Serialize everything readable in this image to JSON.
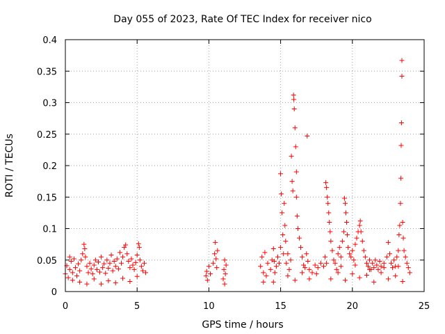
{
  "chart_data": {
    "type": "scatter",
    "title": "Day 055 of 2023, Rate Of TEC Index for receiver nico",
    "xlabel": "GPS time / hours",
    "ylabel": "ROTI / TECUs",
    "xlim": [
      0,
      25
    ],
    "ylim": [
      0,
      0.4
    ],
    "xticks": [
      0,
      5,
      10,
      15,
      20,
      25
    ],
    "yticks": [
      0,
      0.05,
      0.1,
      0.15,
      0.2,
      0.25,
      0.3,
      0.35,
      0.4
    ],
    "xtick_labels": [
      "0",
      "5",
      "10",
      "15",
      "20",
      "25"
    ],
    "ytick_labels": [
      "0",
      "0.05",
      "0.1",
      "0.15",
      "0.2",
      "0.25",
      "0.3",
      "0.35",
      "0.4"
    ],
    "grid": true,
    "marker": "+",
    "color": "#ff0000",
    "series": [
      {
        "name": "ROTI",
        "points": [
          [
            0.0,
            0.028
          ],
          [
            0.1,
            0.041
          ],
          [
            0.2,
            0.022
          ],
          [
            0.3,
            0.035
          ],
          [
            0.4,
            0.048
          ],
          [
            0.5,
            0.03
          ],
          [
            0.6,
            0.052
          ],
          [
            0.7,
            0.038
          ],
          [
            0.8,
            0.025
          ],
          [
            0.9,
            0.044
          ],
          [
            1.0,
            0.033
          ],
          [
            1.1,
            0.05
          ],
          [
            1.2,
            0.06
          ],
          [
            1.3,
            0.075
          ],
          [
            1.35,
            0.068
          ],
          [
            1.4,
            0.055
          ],
          [
            1.5,
            0.04
          ],
          [
            1.6,
            0.03
          ],
          [
            1.7,
            0.045
          ],
          [
            1.8,
            0.036
          ],
          [
            1.9,
            0.028
          ],
          [
            2.0,
            0.042
          ],
          [
            2.1,
            0.05
          ],
          [
            2.2,
            0.035
          ],
          [
            2.3,
            0.047
          ],
          [
            2.4,
            0.031
          ],
          [
            2.5,
            0.055
          ],
          [
            2.6,
            0.038
          ],
          [
            2.7,
            0.044
          ],
          [
            2.8,
            0.029
          ],
          [
            2.9,
            0.05
          ],
          [
            3.0,
            0.037
          ],
          [
            3.1,
            0.045
          ],
          [
            3.2,
            0.058
          ],
          [
            3.3,
            0.033
          ],
          [
            3.4,
            0.048
          ],
          [
            3.5,
            0.04
          ],
          [
            3.6,
            0.052
          ],
          [
            3.7,
            0.036
          ],
          [
            3.8,
            0.062
          ],
          [
            3.9,
            0.045
          ],
          [
            4.0,
            0.055
          ],
          [
            4.1,
            0.07
          ],
          [
            4.2,
            0.074
          ],
          [
            4.3,
            0.06
          ],
          [
            4.4,
            0.048
          ],
          [
            4.5,
            0.038
          ],
          [
            4.6,
            0.052
          ],
          [
            4.7,
            0.042
          ],
          [
            4.8,
            0.035
          ],
          [
            4.9,
            0.046
          ],
          [
            5.0,
            0.058
          ],
          [
            5.1,
            0.076
          ],
          [
            5.15,
            0.07
          ],
          [
            5.2,
            0.05
          ],
          [
            5.3,
            0.04
          ],
          [
            5.4,
            0.033
          ],
          [
            5.5,
            0.045
          ],
          [
            5.6,
            0.03
          ],
          [
            0.5,
            0.018
          ],
          [
            1.0,
            0.015
          ],
          [
            2.0,
            0.02
          ],
          [
            3.0,
            0.017
          ],
          [
            4.0,
            0.021
          ],
          [
            5.0,
            0.024
          ],
          [
            0.3,
            0.055
          ],
          [
            2.5,
            0.012
          ],
          [
            3.5,
            0.014
          ],
          [
            1.5,
            0.012
          ],
          [
            4.5,
            0.016
          ],
          [
            9.8,
            0.025
          ],
          [
            9.85,
            0.032
          ],
          [
            9.9,
            0.018
          ],
          [
            10.0,
            0.04
          ],
          [
            10.1,
            0.028
          ],
          [
            10.3,
            0.045
          ],
          [
            10.4,
            0.06
          ],
          [
            10.45,
            0.078
          ],
          [
            10.5,
            0.052
          ],
          [
            10.55,
            0.038
          ],
          [
            10.6,
            0.065
          ],
          [
            11.0,
            0.02
          ],
          [
            11.05,
            0.035
          ],
          [
            11.1,
            0.05
          ],
          [
            11.15,
            0.028
          ],
          [
            11.2,
            0.042
          ],
          [
            11.1,
            0.012
          ],
          [
            13.6,
            0.04
          ],
          [
            13.7,
            0.055
          ],
          [
            13.8,
            0.03
          ],
          [
            13.9,
            0.062
          ],
          [
            14.0,
            0.025
          ],
          [
            14.1,
            0.045
          ],
          [
            14.3,
            0.035
          ],
          [
            14.4,
            0.05
          ],
          [
            14.5,
            0.068
          ],
          [
            14.55,
            0.048
          ],
          [
            14.6,
            0.03
          ],
          [
            14.7,
            0.04
          ],
          [
            14.8,
            0.055
          ],
          [
            14.9,
            0.045
          ],
          [
            15.0,
            0.07
          ],
          [
            15.0,
            0.187
          ],
          [
            15.05,
            0.155
          ],
          [
            15.1,
            0.125
          ],
          [
            15.15,
            0.09
          ],
          [
            15.2,
            0.06
          ],
          [
            15.25,
            0.14
          ],
          [
            15.3,
            0.105
          ],
          [
            15.35,
            0.08
          ],
          [
            15.4,
            0.045
          ],
          [
            15.5,
            0.06
          ],
          [
            15.6,
            0.035
          ],
          [
            15.7,
            0.05
          ],
          [
            15.75,
            0.215
          ],
          [
            15.8,
            0.175
          ],
          [
            15.85,
            0.16
          ],
          [
            15.9,
            0.312
          ],
          [
            15.92,
            0.305
          ],
          [
            15.95,
            0.29
          ],
          [
            16.0,
            0.26
          ],
          [
            16.05,
            0.23
          ],
          [
            16.1,
            0.19
          ],
          [
            16.1,
            0.15
          ],
          [
            16.15,
            0.12
          ],
          [
            16.2,
            0.1
          ],
          [
            16.3,
            0.085
          ],
          [
            16.4,
            0.07
          ],
          [
            16.5,
            0.055
          ],
          [
            16.6,
            0.042
          ],
          [
            16.7,
            0.038
          ],
          [
            16.8,
            0.06
          ],
          [
            16.85,
            0.247
          ],
          [
            16.9,
            0.048
          ],
          [
            17.0,
            0.035
          ],
          [
            17.2,
            0.03
          ],
          [
            17.4,
            0.042
          ],
          [
            17.6,
            0.038
          ],
          [
            17.8,
            0.045
          ],
          [
            18.0,
            0.04
          ],
          [
            18.1,
            0.055
          ],
          [
            18.15,
            0.173
          ],
          [
            18.2,
            0.165
          ],
          [
            18.25,
            0.15
          ],
          [
            18.3,
            0.14
          ],
          [
            18.35,
            0.125
          ],
          [
            18.4,
            0.11
          ],
          [
            18.45,
            0.095
          ],
          [
            18.5,
            0.08
          ],
          [
            18.6,
            0.065
          ],
          [
            18.7,
            0.05
          ],
          [
            18.8,
            0.045
          ],
          [
            18.9,
            0.035
          ],
          [
            19.0,
            0.06
          ],
          [
            19.1,
            0.07
          ],
          [
            19.2,
            0.055
          ],
          [
            19.3,
            0.08
          ],
          [
            19.4,
            0.095
          ],
          [
            19.45,
            0.148
          ],
          [
            19.5,
            0.14
          ],
          [
            19.55,
            0.125
          ],
          [
            19.6,
            0.11
          ],
          [
            19.65,
            0.09
          ],
          [
            19.7,
            0.07
          ],
          [
            19.8,
            0.06
          ],
          [
            19.9,
            0.055
          ],
          [
            20.0,
            0.065
          ],
          [
            20.1,
            0.05
          ],
          [
            20.2,
            0.075
          ],
          [
            20.3,
            0.085
          ],
          [
            20.4,
            0.095
          ],
          [
            20.5,
            0.105
          ],
          [
            20.55,
            0.112
          ],
          [
            20.6,
            0.095
          ],
          [
            20.7,
            0.08
          ],
          [
            20.8,
            0.065
          ],
          [
            20.9,
            0.055
          ],
          [
            21.0,
            0.045
          ],
          [
            21.1,
            0.04
          ],
          [
            21.2,
            0.05
          ],
          [
            21.3,
            0.035
          ],
          [
            21.4,
            0.045
          ],
          [
            21.5,
            0.038
          ],
          [
            21.6,
            0.05
          ],
          [
            21.7,
            0.042
          ],
          [
            21.8,
            0.035
          ],
          [
            21.9,
            0.048
          ],
          [
            22.0,
            0.04
          ],
          [
            22.2,
            0.045
          ],
          [
            22.4,
            0.055
          ],
          [
            22.5,
            0.078
          ],
          [
            22.6,
            0.06
          ],
          [
            22.7,
            0.045
          ],
          [
            22.8,
            0.038
          ],
          [
            22.9,
            0.05
          ],
          [
            23.0,
            0.04
          ],
          [
            23.1,
            0.055
          ],
          [
            23.2,
            0.065
          ],
          [
            23.25,
            0.09
          ],
          [
            23.3,
            0.105
          ],
          [
            23.35,
            0.14
          ],
          [
            23.38,
            0.18
          ],
          [
            23.4,
            0.232
          ],
          [
            23.42,
            0.268
          ],
          [
            23.45,
            0.342
          ],
          [
            23.45,
            0.367
          ],
          [
            23.5,
            0.11
          ],
          [
            23.55,
            0.085
          ],
          [
            23.6,
            0.065
          ],
          [
            23.7,
            0.055
          ],
          [
            23.8,
            0.045
          ],
          [
            23.9,
            0.038
          ],
          [
            24.0,
            0.03
          ],
          [
            18.5,
            0.02
          ],
          [
            19.5,
            0.018
          ],
          [
            20.5,
            0.022
          ],
          [
            21.5,
            0.015
          ],
          [
            22.5,
            0.02
          ],
          [
            23.5,
            0.016
          ],
          [
            16.0,
            0.018
          ],
          [
            17.0,
            0.02
          ],
          [
            14.5,
            0.015
          ],
          [
            19.0,
            0.03
          ],
          [
            20.0,
            0.028
          ],
          [
            21.0,
            0.026
          ],
          [
            22.0,
            0.03
          ],
          [
            23.0,
            0.025
          ],
          [
            18.2,
            0.045
          ],
          [
            19.2,
            0.04
          ],
          [
            20.2,
            0.042
          ],
          [
            21.2,
            0.035
          ],
          [
            22.2,
            0.038
          ],
          [
            23.2,
            0.04
          ],
          [
            15.5,
            0.025
          ],
          [
            16.5,
            0.03
          ],
          [
            17.5,
            0.028
          ],
          [
            13.8,
            0.015
          ]
        ]
      }
    ]
  }
}
